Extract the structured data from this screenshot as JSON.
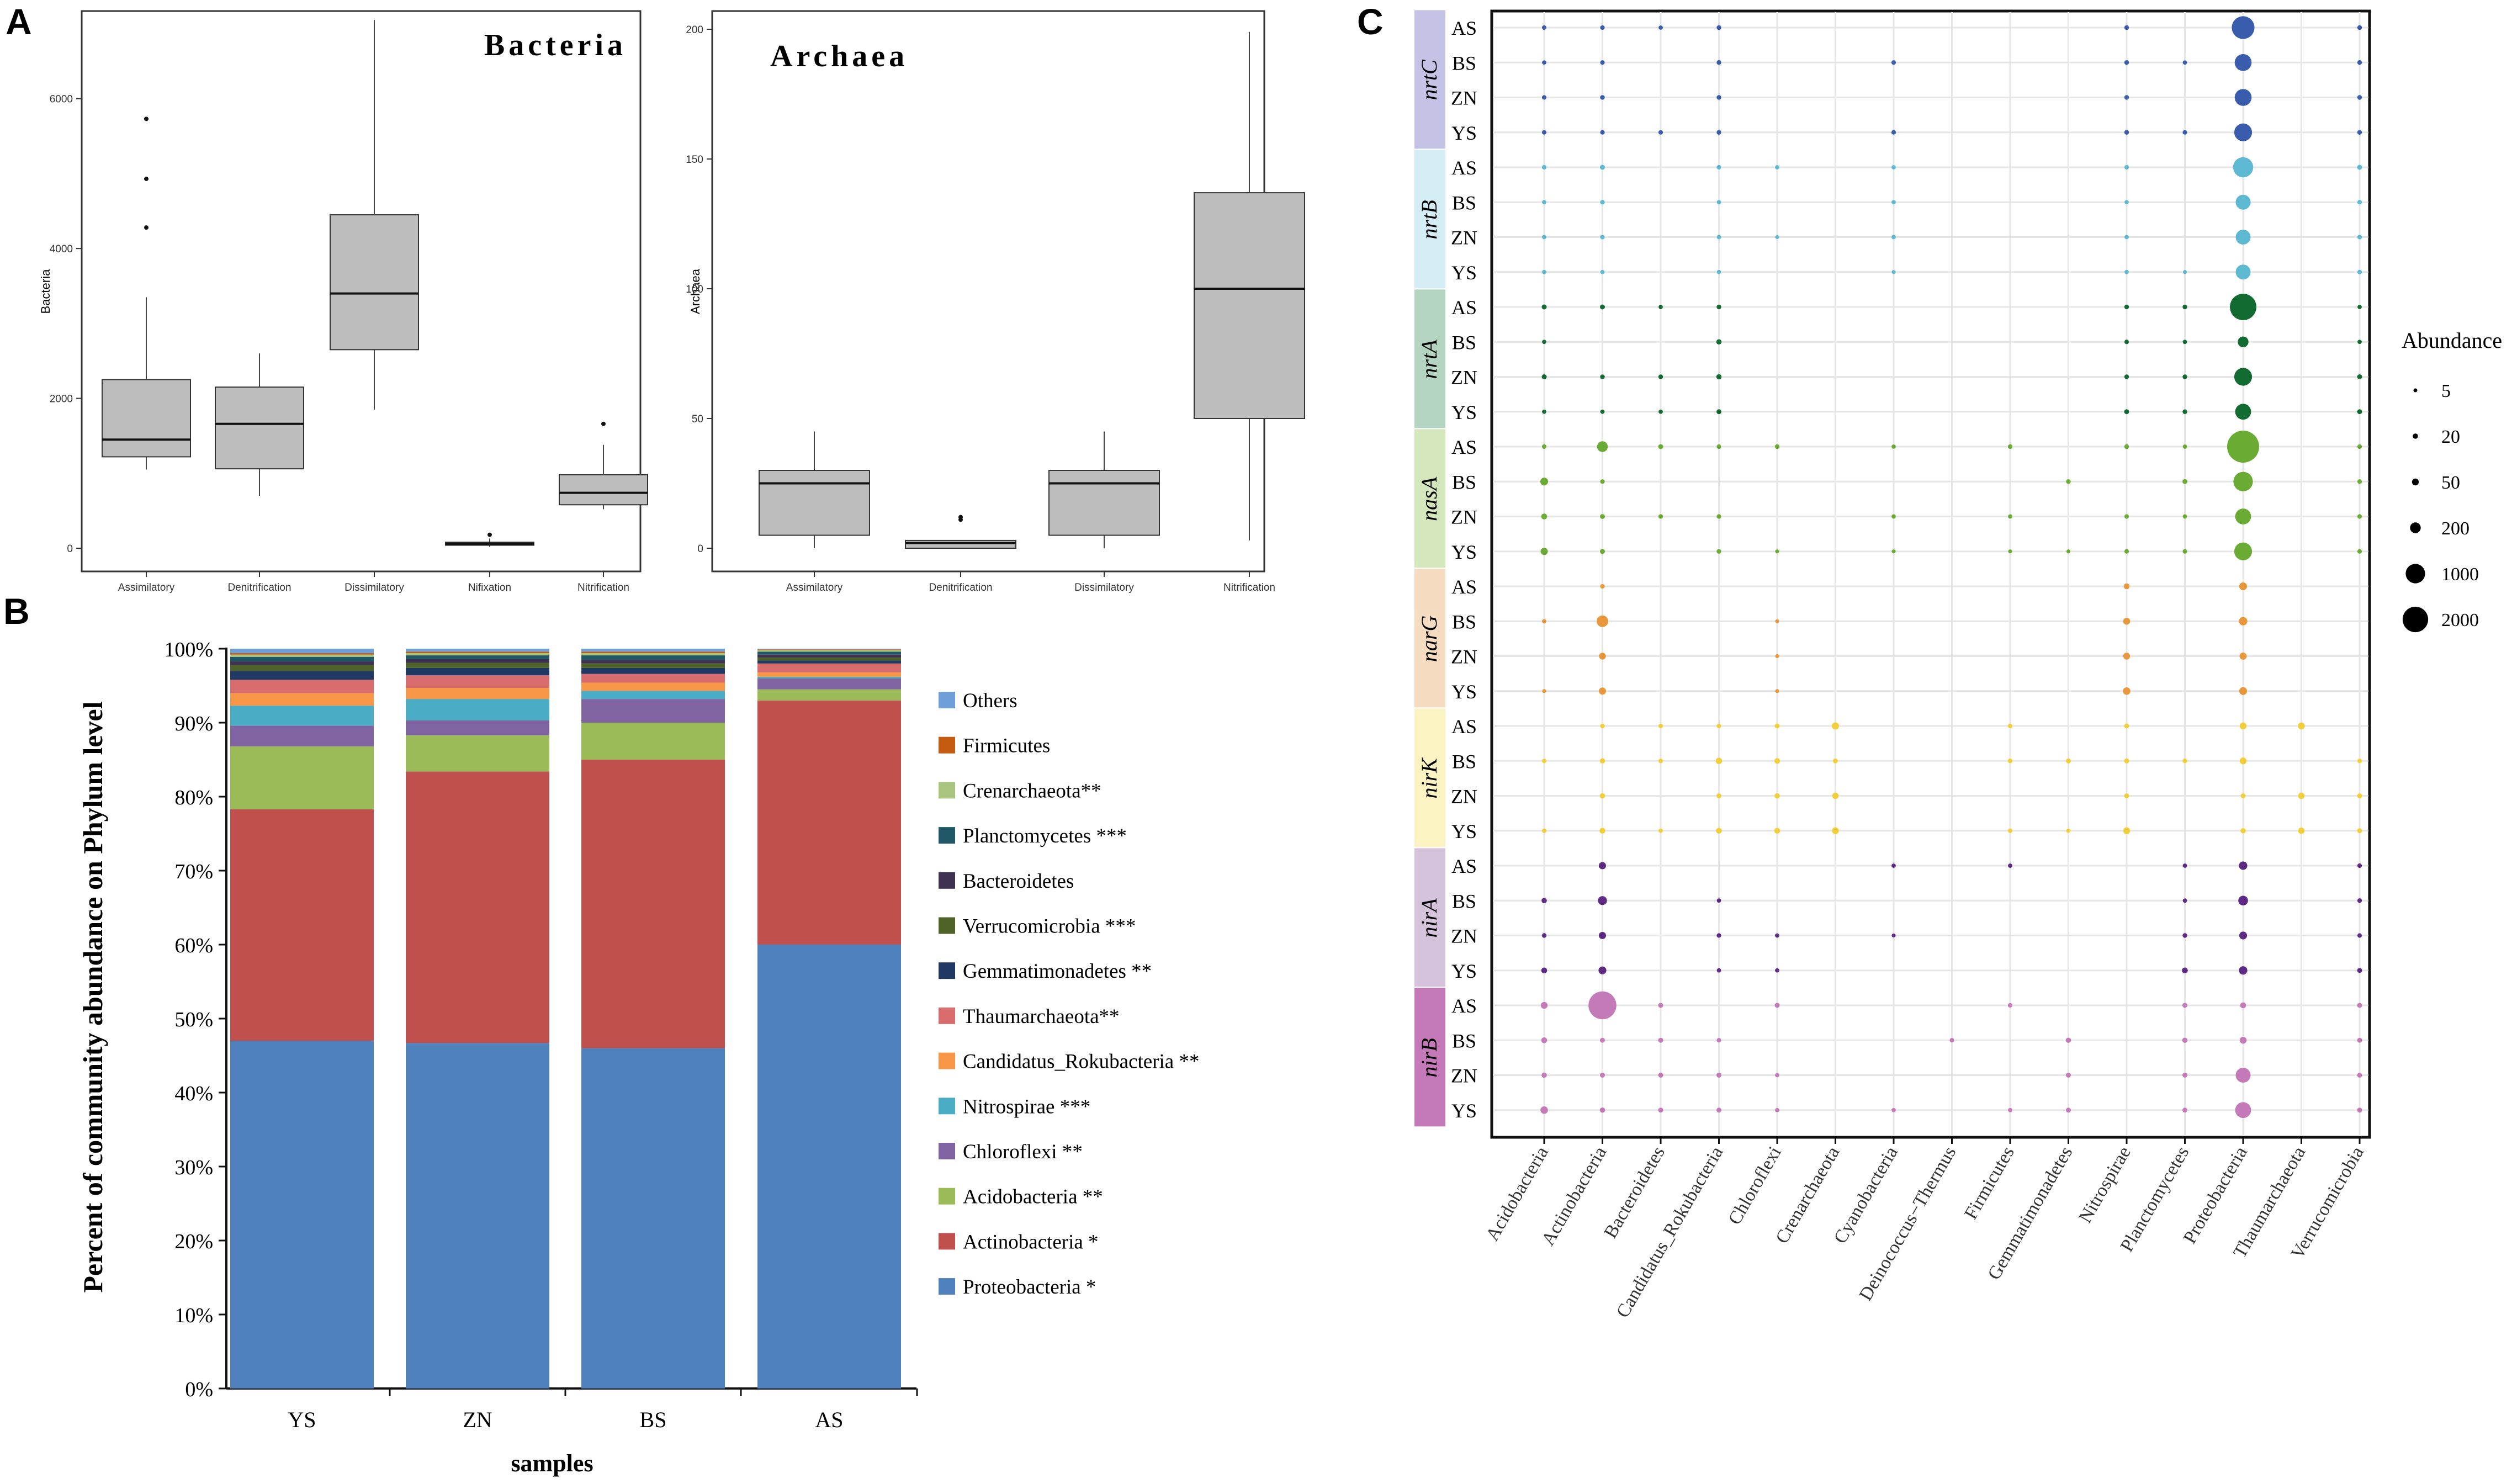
{
  "chart_data": [
    {
      "panel_label": "A",
      "type": "boxplot",
      "title": "Bacteria",
      "ylabel": "Bacteria",
      "ylim": [
        0,
        7000
      ],
      "yticks": [
        0,
        2000,
        4000,
        6000
      ],
      "categories": [
        "Assimilatory",
        "Denitrification",
        "Dissimilatory",
        "Nifixation",
        "Nitrification"
      ],
      "boxes": [
        {
          "min": 1050,
          "q1": 1220,
          "median": 1450,
          "q3": 2250,
          "max": 3350,
          "outliers": [
            4280,
            4930,
            5730
          ]
        },
        {
          "min": 700,
          "q1": 1060,
          "median": 1660,
          "q3": 2150,
          "max": 2600,
          "outliers": []
        },
        {
          "min": 1850,
          "q1": 2650,
          "median": 3400,
          "q3": 4450,
          "max": 7050,
          "outliers": []
        },
        {
          "min": 20,
          "q1": 40,
          "median": 60,
          "q3": 80,
          "max": 130,
          "outliers": [
            180
          ]
        },
        {
          "min": 520,
          "q1": 580,
          "median": 740,
          "q3": 980,
          "max": 1380,
          "outliers": [
            1660
          ]
        }
      ]
    },
    {
      "type": "boxplot",
      "title": "Archaea",
      "ylabel": "Archaea",
      "ylim": [
        0,
        200
      ],
      "yticks": [
        0,
        50,
        100,
        150,
        200
      ],
      "categories": [
        "Assimilatory",
        "Denitrification",
        "Dissimilatory",
        "Nitrification"
      ],
      "boxes": [
        {
          "min": 0,
          "q1": 5,
          "median": 25,
          "q3": 30,
          "max": 45,
          "outliers": []
        },
        {
          "min": 0,
          "q1": 0,
          "median": 2,
          "q3": 3,
          "max": 3,
          "outliers": [
            11,
            12
          ]
        },
        {
          "min": 0,
          "q1": 5,
          "median": 25,
          "q3": 30,
          "max": 45,
          "outliers": []
        },
        {
          "min": 3,
          "q1": 50,
          "median": 100,
          "q3": 137,
          "max": 199,
          "outliers": []
        }
      ]
    },
    {
      "panel_label": "B",
      "type": "stacked_bar",
      "xlabel": "samples",
      "ylabel": "Percent of community abundance on Phylum level",
      "categories": [
        "YS",
        "ZN",
        "BS",
        "AS"
      ],
      "ylim": [
        0,
        100
      ],
      "yticks": [
        "0%",
        "10%",
        "20%",
        "30%",
        "40%",
        "50%",
        "60%",
        "70%",
        "80%",
        "90%",
        "100%"
      ],
      "series": [
        {
          "name": "Proteobacteria *",
          "color": "#4f81bd",
          "values": [
            47,
            46.7,
            46,
            60
          ]
        },
        {
          "name": "Actinobacteria *",
          "color": "#c0504d",
          "values": [
            31.3,
            36.7,
            39,
            33
          ]
        },
        {
          "name": "Acidobacteria **",
          "color": "#9bbb59",
          "values": [
            8.5,
            4.9,
            5,
            1.5
          ]
        },
        {
          "name": "Chloroflexi **",
          "color": "#8064a2",
          "values": [
            2.8,
            2,
            3.2,
            1.5
          ]
        },
        {
          "name": "Nitrospirae ***",
          "color": "#4bacc6",
          "values": [
            2.7,
            2.9,
            1.1,
            0.2
          ]
        },
        {
          "name": "Candidatus_Rokubacteria **",
          "color": "#f79646",
          "values": [
            1.7,
            1.5,
            1.1,
            0.6
          ]
        },
        {
          "name": "Thaumarchaeota**",
          "color": "#d96d6d",
          "values": [
            1.8,
            1.7,
            1.2,
            1.2
          ]
        },
        {
          "name": "Gemmatimonadetes **",
          "color": "#1f3864",
          "values": [
            1.2,
            1,
            0.8,
            0.4
          ]
        },
        {
          "name": "Verrucomicrobia ***",
          "color": "#4f6228",
          "values": [
            0.8,
            0.7,
            0.6,
            0.4
          ]
        },
        {
          "name": "Bacteroidetes",
          "color": "#3f3151",
          "values": [
            0.5,
            0.5,
            0.5,
            0.4
          ]
        },
        {
          "name": "Planctomycetes ***",
          "color": "#215868",
          "values": [
            0.6,
            0.5,
            0.6,
            0.4
          ]
        },
        {
          "name": "Crenarchaeota**",
          "color": "#a9c47f",
          "values": [
            0.3,
            0.3,
            0.3,
            0.2
          ]
        },
        {
          "name": "Firmicutes",
          "color": "#c55a11",
          "values": [
            0.2,
            0.2,
            0.2,
            0.1
          ]
        },
        {
          "name": "Others",
          "color": "#6f9fd8",
          "values": [
            0.6,
            0.4,
            0.4,
            0.1
          ]
        }
      ]
    },
    {
      "panel_label": "C",
      "type": "bubble",
      "legend_title": "Abundance",
      "size_legend": [
        5,
        20,
        50,
        200,
        1000,
        2000
      ],
      "x": [
        "Acidobacteria",
        "Actinobacteria",
        "Bacteroidetes",
        "Candidatus_Rokubacteria",
        "Chloroflexi",
        "Crenarchaeota",
        "Cyanobacteria",
        "Deinococcus−Thermus",
        "Firmicutes",
        "Gemmatimonadetes",
        "Nitrospirae",
        "Planctomycetes",
        "Proteobacteria",
        "Thaumarchaeota",
        "Verrucomicrobia"
      ],
      "groups": [
        {
          "gene": "nrtC",
          "color": "#c4c3e6",
          "dot": "#3a5cad",
          "rows": [
            {
              "sample": "AS",
              "v": [
                10,
                10,
                8,
                12,
                0,
                0,
                0,
                0,
                0,
                0,
                12,
                0,
                1500,
                0,
                12
              ]
            },
            {
              "sample": "BS",
              "v": [
                8,
                10,
                0,
                12,
                0,
                0,
                10,
                0,
                0,
                0,
                12,
                8,
                700,
                0,
                12
              ]
            },
            {
              "sample": "ZN",
              "v": [
                10,
                12,
                0,
                12,
                0,
                0,
                0,
                0,
                0,
                0,
                12,
                0,
                700,
                0,
                12
              ]
            },
            {
              "sample": "YS",
              "v": [
                10,
                10,
                10,
                12,
                0,
                0,
                10,
                0,
                0,
                0,
                12,
                10,
                800,
                0,
                12
              ]
            }
          ]
        },
        {
          "gene": "nrtB",
          "color": "#d4ecf3",
          "dot": "#5db8d2",
          "rows": [
            {
              "sample": "AS",
              "v": [
                10,
                15,
                0,
                10,
                8,
                0,
                8,
                0,
                0,
                0,
                10,
                0,
                1100,
                0,
                15
              ]
            },
            {
              "sample": "BS",
              "v": [
                8,
                10,
                0,
                8,
                0,
                0,
                8,
                0,
                0,
                0,
                8,
                0,
                500,
                0,
                10
              ]
            },
            {
              "sample": "ZN",
              "v": [
                8,
                10,
                0,
                8,
                6,
                0,
                8,
                0,
                0,
                0,
                8,
                0,
                500,
                0,
                10
              ]
            },
            {
              "sample": "YS",
              "v": [
                8,
                8,
                0,
                8,
                0,
                0,
                6,
                0,
                0,
                0,
                8,
                6,
                500,
                0,
                10
              ]
            }
          ]
        },
        {
          "gene": "nrtA",
          "color": "#b2d4c1",
          "dot": "#126b30",
          "rows": [
            {
              "sample": "AS",
              "v": [
                15,
                15,
                8,
                12,
                0,
                0,
                0,
                0,
                0,
                0,
                12,
                12,
                2200,
                0,
                8
              ]
            },
            {
              "sample": "BS",
              "v": [
                8,
                0,
                0,
                20,
                0,
                0,
                0,
                0,
                0,
                0,
                10,
                8,
                200,
                0,
                8
              ]
            },
            {
              "sample": "ZN",
              "v": [
                15,
                12,
                12,
                18,
                0,
                0,
                0,
                0,
                0,
                0,
                12,
                12,
                800,
                0,
                15
              ]
            },
            {
              "sample": "YS",
              "v": [
                8,
                8,
                8,
                15,
                0,
                0,
                0,
                0,
                0,
                0,
                15,
                12,
                600,
                0,
                15
              ]
            }
          ]
        },
        {
          "gene": "nasA",
          "color": "#d4e6bc",
          "dot": "#6aab33",
          "rows": [
            {
              "sample": "AS",
              "v": [
                10,
                200,
                15,
                10,
                12,
                0,
                8,
                0,
                12,
                0,
                12,
                8,
                3500,
                0,
                10
              ]
            },
            {
              "sample": "BS",
              "v": [
                80,
                10,
                0,
                0,
                0,
                0,
                0,
                0,
                0,
                12,
                0,
                15,
                1000,
                0,
                10
              ]
            },
            {
              "sample": "ZN",
              "v": [
                30,
                15,
                10,
                10,
                0,
                0,
                8,
                0,
                8,
                0,
                10,
                8,
                600,
                0,
                10
              ]
            },
            {
              "sample": "YS",
              "v": [
                60,
                15,
                0,
                12,
                6,
                0,
                6,
                0,
                6,
                6,
                10,
                10,
                800,
                0,
                10
              ]
            }
          ]
        },
        {
          "gene": "narG",
          "color": "#f5dcc0",
          "dot": "#e8973a",
          "rows": [
            {
              "sample": "AS",
              "v": [
                0,
                10,
                0,
                0,
                0,
                0,
                0,
                0,
                0,
                0,
                30,
                0,
                80,
                0,
                0
              ]
            },
            {
              "sample": "BS",
              "v": [
                8,
                250,
                0,
                0,
                6,
                0,
                0,
                0,
                0,
                0,
                50,
                0,
                100,
                0,
                0
              ]
            },
            {
              "sample": "ZN",
              "v": [
                0,
                50,
                0,
                0,
                6,
                0,
                0,
                0,
                0,
                0,
                50,
                0,
                60,
                0,
                0
              ]
            },
            {
              "sample": "YS",
              "v": [
                6,
                60,
                0,
                0,
                6,
                0,
                0,
                0,
                0,
                0,
                70,
                0,
                80,
                0,
                0
              ]
            }
          ]
        },
        {
          "gene": "nirK",
          "color": "#fbf3c2",
          "dot": "#f2cf3a",
          "rows": [
            {
              "sample": "AS",
              "v": [
                0,
                10,
                10,
                10,
                15,
                60,
                0,
                0,
                10,
                0,
                15,
                0,
                50,
                50,
                0
              ]
            },
            {
              "sample": "BS",
              "v": [
                10,
                20,
                10,
                40,
                25,
                15,
                0,
                0,
                12,
                15,
                15,
                12,
                50,
                0,
                10
              ]
            },
            {
              "sample": "ZN",
              "v": [
                0,
                20,
                0,
                15,
                20,
                40,
                0,
                0,
                0,
                0,
                15,
                0,
                15,
                40,
                15
              ]
            },
            {
              "sample": "YS",
              "v": [
                10,
                30,
                8,
                30,
                30,
                50,
                0,
                0,
                10,
                8,
                50,
                0,
                20,
                40,
                15
              ]
            }
          ]
        },
        {
          "gene": "nirA",
          "color": "#d5c3dc",
          "dot": "#5e2a84",
          "rows": [
            {
              "sample": "AS",
              "v": [
                0,
                60,
                0,
                0,
                0,
                0,
                8,
                0,
                8,
                0,
                0,
                8,
                100,
                0,
                10
              ]
            },
            {
              "sample": "BS",
              "v": [
                20,
                120,
                0,
                8,
                0,
                0,
                0,
                0,
                0,
                0,
                0,
                8,
                150,
                0,
                10
              ]
            },
            {
              "sample": "ZN",
              "v": [
                12,
                60,
                0,
                10,
                8,
                0,
                6,
                0,
                0,
                0,
                0,
                12,
                80,
                0,
                10
              ]
            },
            {
              "sample": "YS",
              "v": [
                30,
                80,
                0,
                8,
                8,
                0,
                0,
                0,
                0,
                0,
                0,
                30,
                100,
                0,
                15
              ]
            }
          ]
        },
        {
          "gene": "nirB",
          "color": "#c47ab8",
          "dot": "#c47ab8",
          "rows": [
            {
              "sample": "AS",
              "v": [
                50,
                2500,
                15,
                0,
                15,
                0,
                0,
                0,
                10,
                0,
                0,
                15,
                30,
                0,
                15
              ]
            },
            {
              "sample": "BS",
              "v": [
                30,
                15,
                15,
                10,
                0,
                0,
                0,
                10,
                0,
                20,
                0,
                20,
                50,
                0,
                15
              ]
            },
            {
              "sample": "ZN",
              "v": [
                20,
                15,
                15,
                15,
                8,
                0,
                0,
                0,
                0,
                15,
                0,
                15,
                500,
                0,
                15
              ]
            },
            {
              "sample": "YS",
              "v": [
                70,
                20,
                15,
                15,
                8,
                0,
                8,
                0,
                8,
                15,
                0,
                15,
                600,
                0,
                15
              ]
            }
          ]
        }
      ]
    }
  ]
}
